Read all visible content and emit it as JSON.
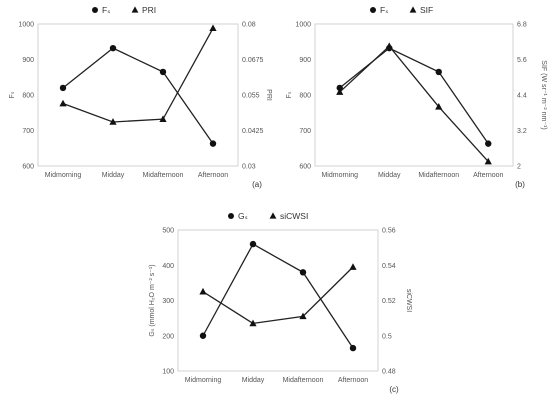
{
  "chart_data": [
    {
      "type": "line",
      "panel_label": "(a)",
      "categories": [
        "Midmorning",
        "Midday",
        "Midafternoon",
        "Afternoon"
      ],
      "ylabel_left": "Fₛ",
      "ylabel_right": "PRI",
      "ylim_left": [
        600,
        1000
      ],
      "yticks_left": [
        "600",
        "700",
        "800",
        "900",
        "1000"
      ],
      "ylim_right": [
        0.03,
        0.08
      ],
      "yticks_right": [
        "0.03",
        "0.0425",
        "0.055",
        "0.0675",
        "0.08"
      ],
      "grid": false,
      "legend_position": "top",
      "series": [
        {
          "name": "Fₛ",
          "marker": "circle",
          "axis": "left",
          "values": [
            820,
            932,
            865,
            663
          ]
        },
        {
          "name": "PRI",
          "marker": "triangle",
          "axis": "right",
          "values": [
            0.052,
            0.0455,
            0.0465,
            0.0785
          ]
        }
      ]
    },
    {
      "type": "line",
      "panel_label": "(b)",
      "categories": [
        "Midmorning",
        "Midday",
        "Midafternoon",
        "Afternoon"
      ],
      "ylabel_left": "Fₛ",
      "ylabel_right": "SIF (W sr⁻¹ m⁻² nm⁻¹)",
      "ylim_left": [
        600,
        1000
      ],
      "yticks_left": [
        "600",
        "700",
        "800",
        "900",
        "1000"
      ],
      "ylim_right": [
        2,
        6.8
      ],
      "yticks_right": [
        "2",
        "3.2",
        "4.4",
        "5.6",
        "6.8"
      ],
      "grid": false,
      "legend_position": "top",
      "series": [
        {
          "name": "Fₛ",
          "marker": "circle",
          "axis": "left",
          "values": [
            820,
            932,
            865,
            663
          ]
        },
        {
          "name": "SIF",
          "marker": "triangle",
          "axis": "right",
          "values": [
            4.5,
            6.05,
            4.0,
            2.15
          ]
        }
      ]
    },
    {
      "type": "line",
      "panel_label": "(c)",
      "categories": [
        "Midmorning",
        "Midday",
        "Midafternoon",
        "Afternoon"
      ],
      "ylabel_left": "Gₛ (mmol H₂O m⁻² s⁻¹)",
      "ylabel_right": "siCWSI",
      "ylim_left": [
        100,
        500
      ],
      "yticks_left": [
        "100",
        "200",
        "300",
        "400",
        "500"
      ],
      "ylim_right": [
        0.48,
        0.56
      ],
      "yticks_right": [
        "0.48",
        "0.5",
        "0.52",
        "0.54",
        "0.56"
      ],
      "grid": false,
      "legend_position": "top",
      "series": [
        {
          "name": "Gₛ",
          "marker": "circle",
          "axis": "left",
          "values": [
            200,
            460,
            380,
            165
          ]
        },
        {
          "name": "siCWSI",
          "marker": "triangle",
          "axis": "right",
          "values": [
            0.525,
            0.507,
            0.511,
            0.539
          ]
        }
      ]
    }
  ]
}
